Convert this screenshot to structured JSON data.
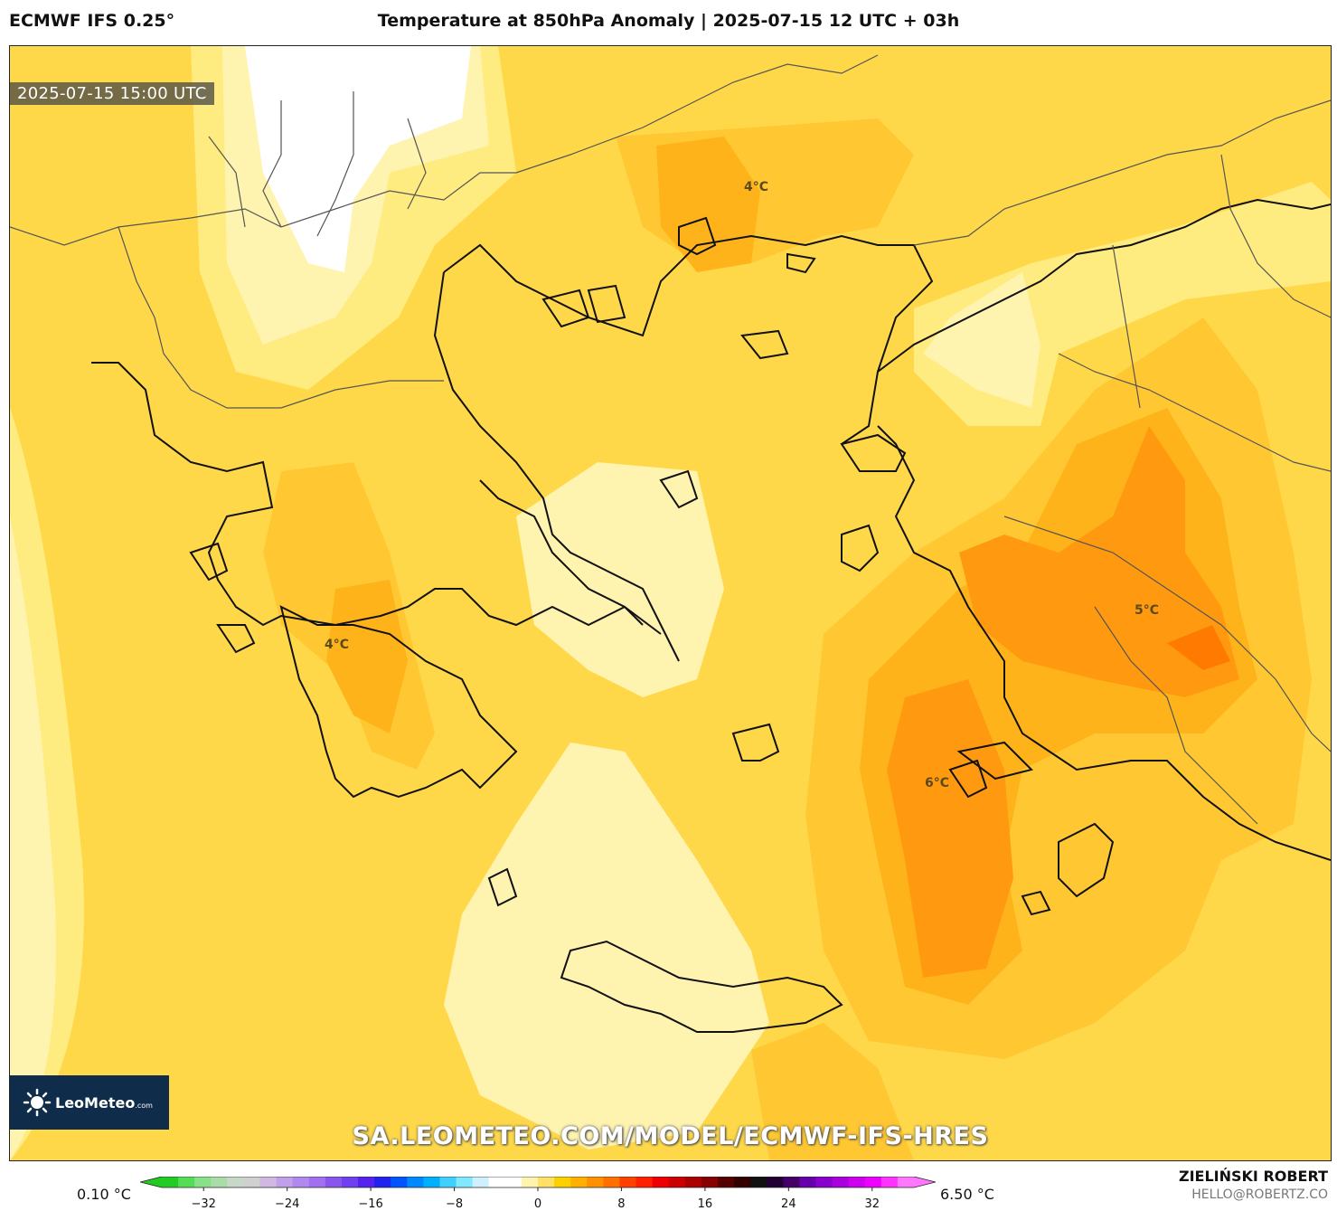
{
  "header": {
    "model": "ECMWF IFS 0.25°",
    "title": "Temperature at 850hPa Anomaly | 2025-07-15 12 UTC + 03h"
  },
  "map": {
    "valid_time": "2025-07-15 15:00 UTC",
    "watermark": "SA.LEOMETEO.COM/MODEL/ECMWF-IFS-HRES",
    "logo": {
      "name": "LeoMeteo",
      "suffix": ".com",
      "icon": "sun-icon"
    },
    "contour_labels": [
      {
        "text": "4°C",
        "region": "northern-aegean"
      },
      {
        "text": "4°C",
        "region": "peloponnese"
      },
      {
        "text": "5°C",
        "region": "western-anatolia"
      },
      {
        "text": "6°C",
        "region": "dodecanese"
      }
    ],
    "colors": {
      "pale": "#fff3b0",
      "light": "#ffec80",
      "base": "#ffd84a",
      "mid": "#ffc832",
      "orange": "#ffb31a",
      "deep_orange": "#ff9a10",
      "hot": "#ff7a00",
      "coast": "#111111",
      "borders": "#555555"
    }
  },
  "legend": {
    "min_label": "0.10 °C",
    "max_label": "6.50 °C",
    "ticks": [
      "−32",
      "−24",
      "−16",
      "−8",
      "0",
      "8",
      "16",
      "24",
      "32"
    ],
    "tick_values": [
      -32,
      -24,
      -16,
      -8,
      0,
      8,
      16,
      24,
      32
    ],
    "range": [
      -36,
      36
    ],
    "colors": [
      "#22cc22",
      "#55dd55",
      "#88e088",
      "#aadcaa",
      "#c8d8c8",
      "#d0d0d0",
      "#d0b8e0",
      "#c0a0e8",
      "#b088f0",
      "#a070f0",
      "#8855ee",
      "#7040f0",
      "#5522ee",
      "#2222ee",
      "#0055ff",
      "#0088ff",
      "#00b0ff",
      "#40d0ff",
      "#80e8ff",
      "#d0f0ff",
      "#ffffff",
      "#ffffff",
      "#fff3b0",
      "#ffe066",
      "#ffd000",
      "#ffb000",
      "#ff9000",
      "#ff7000",
      "#ff4000",
      "#ff2000",
      "#ee0000",
      "#cc0000",
      "#aa0000",
      "#880000",
      "#550000",
      "#330000",
      "#111111",
      "#220033",
      "#440066",
      "#6600aa",
      "#8800cc",
      "#aa00dd",
      "#cc00ee",
      "#ee00ff",
      "#ff33ff",
      "#ff77ff"
    ]
  },
  "credits": {
    "author": "ZIELIŃSKI ROBERT",
    "email": "HELLO@ROBERTZ.CO"
  }
}
